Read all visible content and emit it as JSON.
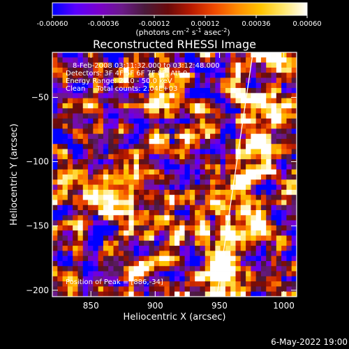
{
  "chart_data": {
    "type": "heatmap",
    "title": "Reconstructed RHESSI Image",
    "xlabel": "Heliocentric X (arcsec)",
    "ylabel": "Heliocentric Y (arcsec)",
    "xlim": [
      820,
      1010
    ],
    "ylim": [
      -205,
      -15
    ],
    "x_ticks": [
      850,
      900,
      950,
      1000
    ],
    "y_ticks": [
      -50,
      -100,
      -150,
      -200
    ],
    "colorbar": {
      "range": [
        -0.0006,
        0.0006
      ],
      "ticks": [
        "-0.00060",
        "-0.00036",
        "-0.00012",
        "0.00012",
        "0.00036",
        "0.00060"
      ],
      "units_prefix": "(photons cm",
      "units_exp1": "-2",
      "units_mid1": " s",
      "units_exp2": "-1",
      "units_mid2": " asec",
      "units_exp3": "-2",
      "units_suffix": ")",
      "colormap": [
        "#0000ff",
        "#5a00ff",
        "#7a00cc",
        "#6b1a8a",
        "#4a1a3a",
        "#6a0a0a",
        "#b81a00",
        "#f04a00",
        "#ff8c00",
        "#ffc400",
        "#ffe870",
        "#ffffff"
      ]
    },
    "annotations": [
      "8-Feb-2008 03:11:32.000 to 03:12:48.000",
      "Detectors: 3F 4F 5F 6F 7F 8F, Att 0",
      "Energy Range: 25.0 - 50.0 keV",
      "Clean     Total counts: 2.04E+03"
    ],
    "peak_label": "Position of Peak = [886,-34]",
    "limb_line": {
      "x": [
        976,
        948
      ],
      "y": [
        -15,
        -205
      ]
    },
    "grid": {
      "nx": 48,
      "ny": 48
    }
  },
  "footer": {
    "timestamp": "6-May-2022 19:00"
  }
}
